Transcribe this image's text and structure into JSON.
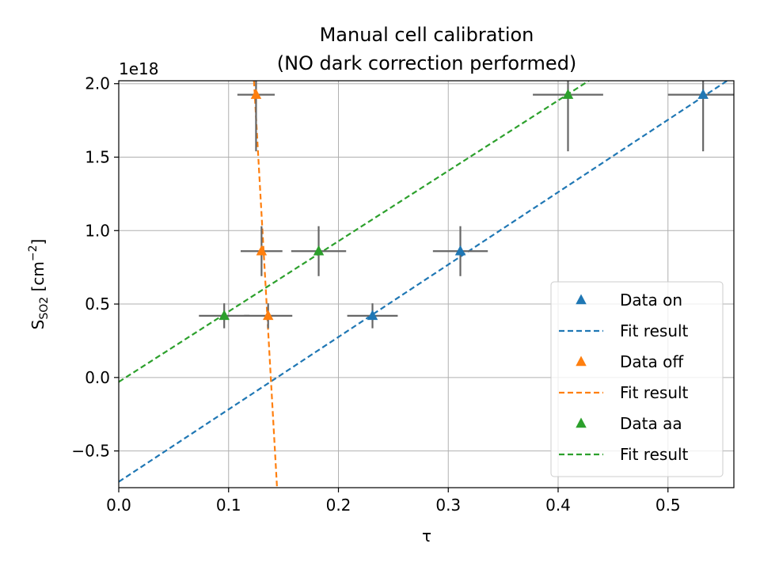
{
  "chart_data": {
    "type": "scatter",
    "title": "Manual cell calibration",
    "subtitle": "(NO dark correction performed)",
    "xlabel": "τ",
    "ylabel_main": "S",
    "ylabel_sub": "SO2",
    "ylabel_unit": " [cm",
    "ylabel_exp": "−2",
    "ylabel_close": "]",
    "y_offset_label": "1e18",
    "xlim": [
      0.0,
      0.56
    ],
    "ylim": [
      -0.75,
      2.02
    ],
    "x_ticks": [
      0.0,
      0.1,
      0.2,
      0.3,
      0.4,
      0.5
    ],
    "x_tick_labels": [
      "0.0",
      "0.1",
      "0.2",
      "0.3",
      "0.4",
      "0.5"
    ],
    "y_ticks": [
      -0.5,
      0.0,
      0.5,
      1.0,
      1.5,
      2.0
    ],
    "y_tick_labels": [
      "−0.5",
      "0.0",
      "0.5",
      "1.0",
      "1.5",
      "2.0"
    ],
    "grid": true,
    "legend_placement": "lower-right",
    "series": [
      {
        "name": "Data on",
        "color": "#1f77b4",
        "points": [
          {
            "x": 0.231,
            "y": 0.42,
            "xerr": 0.023,
            "yerr": 0.085
          },
          {
            "x": 0.311,
            "y": 0.86,
            "xerr": 0.025,
            "yerr": 0.17
          },
          {
            "x": 0.532,
            "y": 1.925,
            "xerr": 0.032,
            "yerr": 0.385
          }
        ],
        "fit": {
          "name": "Fit result",
          "x": [
            0.0,
            0.56
          ],
          "y": [
            -0.71,
            2.05
          ]
        }
      },
      {
        "name": "Data off",
        "color": "#ff7f0e",
        "points": [
          {
            "x": 0.136,
            "y": 0.42,
            "xerr": 0.022,
            "yerr": 0.085
          },
          {
            "x": 0.13,
            "y": 0.86,
            "xerr": 0.019,
            "yerr": 0.17
          },
          {
            "x": 0.125,
            "y": 1.925,
            "xerr": 0.017,
            "yerr": 0.385
          }
        ],
        "fit": {
          "name": "Fit result",
          "x": [
            0.1231,
            0.1441
          ],
          "y": [
            2.02,
            -0.75
          ]
        }
      },
      {
        "name": "Data aa",
        "color": "#2ca02c",
        "points": [
          {
            "x": 0.096,
            "y": 0.42,
            "xerr": 0.023,
            "yerr": 0.085
          },
          {
            "x": 0.182,
            "y": 0.86,
            "xerr": 0.025,
            "yerr": 0.17
          },
          {
            "x": 0.409,
            "y": 1.925,
            "xerr": 0.032,
            "yerr": 0.385
          }
        ],
        "fit": {
          "name": "Fit result",
          "x": [
            0.0,
            0.428
          ],
          "y": [
            -0.03,
            2.02
          ]
        }
      }
    ],
    "errorbar_color": "#666666"
  }
}
